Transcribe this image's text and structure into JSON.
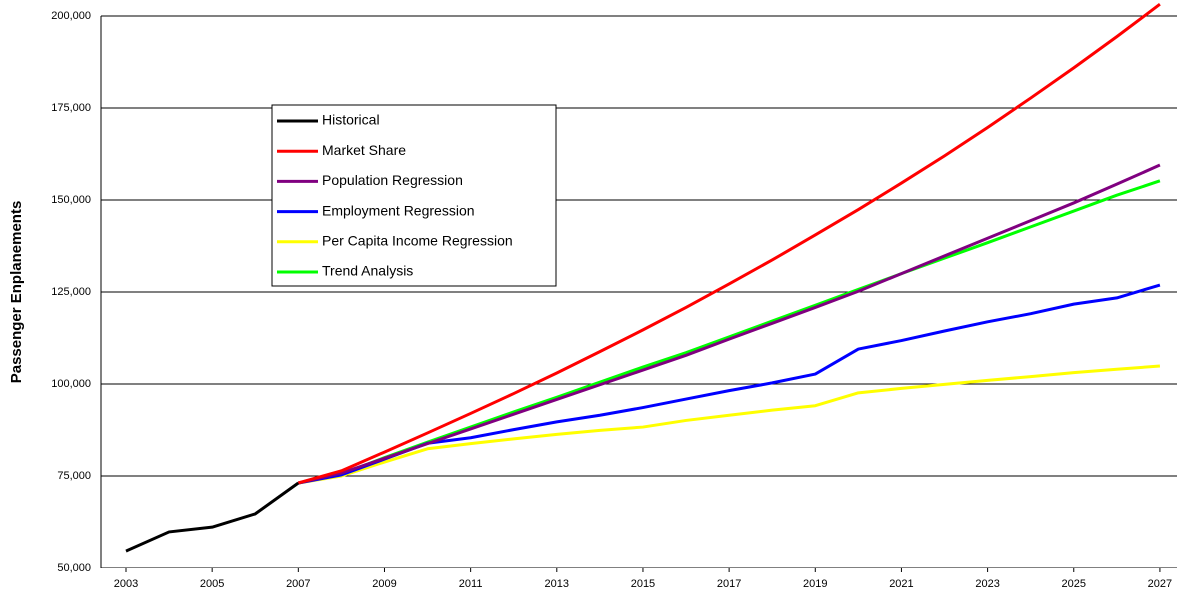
{
  "chart_data": {
    "type": "line",
    "y_label": "Passenger Enplanements",
    "x": [
      2003,
      2004,
      2005,
      2006,
      2007,
      2008,
      2009,
      2010,
      2011,
      2012,
      2013,
      2014,
      2015,
      2016,
      2017,
      2018,
      2019,
      2020,
      2021,
      2022,
      2023,
      2024,
      2025,
      2026,
      2027
    ],
    "series": [
      {
        "name": "Historical",
        "color": "#000000",
        "values": [
          54600,
          59800,
          61100,
          64700,
          73100,
          null,
          null,
          null,
          null,
          null,
          null,
          null,
          null,
          null,
          null,
          null,
          null,
          null,
          null,
          null,
          null,
          null,
          null,
          null,
          null
        ]
      },
      {
        "name": "Market Share",
        "color": "#ff0000",
        "values": [
          null,
          null,
          null,
          null,
          73100,
          76400,
          81500,
          86700,
          92000,
          97400,
          103000,
          108800,
          114700,
          120800,
          127200,
          133700,
          140500,
          147400,
          154600,
          162000,
          169700,
          177700,
          185900,
          194400,
          203200
        ]
      },
      {
        "name": "Population Regression",
        "color": "#800080",
        "values": [
          null,
          null,
          null,
          null,
          73100,
          75800,
          79800,
          83800,
          87800,
          91800,
          95800,
          99800,
          103800,
          107800,
          112200,
          116500,
          120800,
          125200,
          130000,
          134800,
          139600,
          144400,
          149200,
          154300,
          159500
        ]
      },
      {
        "name": "Employment Regression",
        "color": "#0000ff",
        "values": [
          null,
          null,
          null,
          null,
          73100,
          75300,
          79600,
          83900,
          85400,
          87600,
          89700,
          91500,
          93600,
          95900,
          98200,
          100300,
          102700,
          109500,
          111800,
          114400,
          116900,
          119100,
          121700,
          123400,
          126900
        ]
      },
      {
        "name": "Per Capita Income Regression",
        "color": "#ffff00",
        "values": [
          null,
          null,
          null,
          null,
          73100,
          75000,
          78800,
          82400,
          83800,
          85100,
          86300,
          87400,
          88300,
          90100,
          91500,
          92900,
          94100,
          97600,
          98800,
          99900,
          101000,
          102000,
          103100,
          104000,
          104900
        ]
      },
      {
        "name": "Trend Analysis",
        "color": "#00ff00",
        "values": [
          null,
          null,
          null,
          null,
          73100,
          75500,
          80000,
          84200,
          88300,
          92400,
          96400,
          100500,
          104600,
          108500,
          112800,
          117100,
          121400,
          125700,
          130000,
          134200,
          138400,
          142700,
          147000,
          151300,
          155200
        ]
      }
    ],
    "xlim": [
      2002.5,
      2027.5
    ],
    "xticks": [
      2003,
      2005,
      2007,
      2009,
      2011,
      2013,
      2015,
      2017,
      2019,
      2021,
      2023,
      2025,
      2027
    ],
    "ylim": [
      50000,
      200000
    ],
    "yticks": [
      {
        "value": 50000,
        "label": "50,000"
      },
      {
        "value": 75000,
        "label": "75,000"
      },
      {
        "value": 100000,
        "label": "100,000"
      },
      {
        "value": 125000,
        "label": "125,000"
      },
      {
        "value": 150000,
        "label": "150,000"
      },
      {
        "value": 175000,
        "label": "175,000"
      },
      {
        "value": 200000,
        "label": "200,000"
      }
    ],
    "grid": true,
    "legend": "upper-left"
  }
}
